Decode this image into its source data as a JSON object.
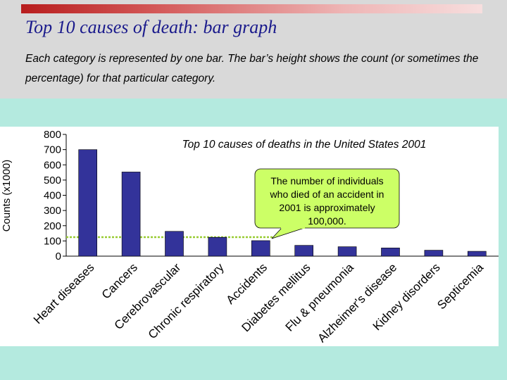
{
  "slide": {
    "title": "Top 10 causes of death: bar graph",
    "body": "Each category is represented by one bar. The bar’s height shows the count (or sometimes the percentage) for that particular category."
  },
  "colors": {
    "bar": "#33339a",
    "title": "#1a1a8c",
    "callout": "#ccff66",
    "guide": "#99cc33"
  },
  "chart_data": {
    "type": "bar",
    "title": "Top 10 causes of deaths in the United States 2001",
    "ylabel": "Counts (x1000)",
    "xlabel": "",
    "ylim": [
      0,
      800
    ],
    "yticks": [
      0,
      100,
      200,
      300,
      400,
      500,
      600,
      700,
      800
    ],
    "categories": [
      "Heart diseases",
      "Cancers",
      "Cerebrovascular",
      "Chronic respiratory",
      "Accidents",
      "Diabetes mellitus",
      "Flu & pneumonia",
      "Alzheimer's disease",
      "Kidney disorders",
      "Septicemia"
    ],
    "values": [
      700,
      553,
      163,
      124,
      102,
      71,
      62,
      54,
      39,
      32
    ],
    "annotation": {
      "lines": [
        "The number of individuals",
        "who died of an accident in",
        "2001 is approximately",
        "100,000."
      ],
      "value": 125
    }
  }
}
